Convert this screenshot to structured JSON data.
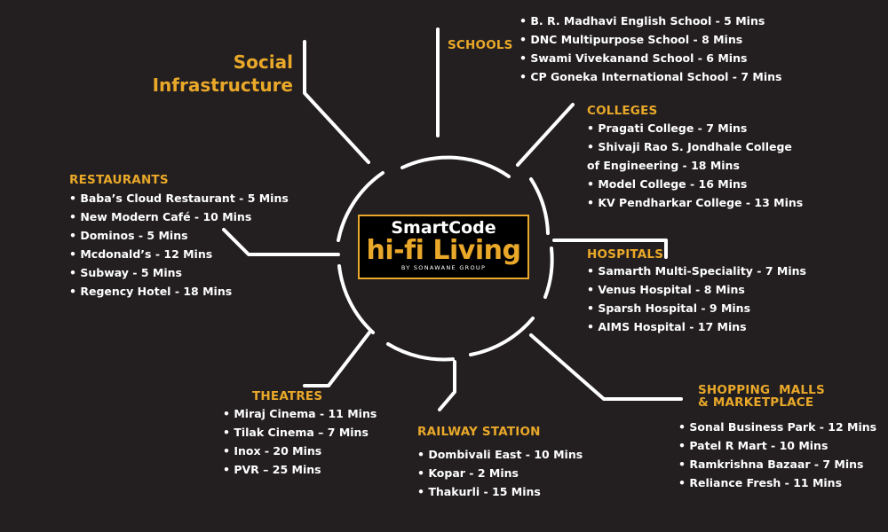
{
  "title": "Social Infrastructure",
  "logo": {
    "line1": "SmartCode",
    "line2": "hi-fi Living",
    "line3": "BY SONAWANE GROUP"
  },
  "schools": {
    "heading": "SCHOOLS",
    "items": [
      "• B. R. Madhavi English School - 5 Mins",
      "• DNC Multipurpose School - 8 Mins",
      "• Swami Vivekanand School - 6 Mins",
      "• CP Goneka International School - 7 Mins"
    ]
  },
  "colleges": {
    "heading": "COLLEGES",
    "items": [
      "• Pragati College - 7 Mins",
      "• Shivaji Rao S. Jondhale College",
      "of Engineering - 18 Mins",
      "• Model College - 16 Mins",
      "• KV Pendharkar College - 13 Mins"
    ]
  },
  "hospitals": {
    "heading": "HOSPITALS",
    "items": [
      "• Samarth Multi-Speciality - 7 Mins",
      "• Venus Hospital - 8 Mins",
      "• Sparsh Hospital - 9 Mins",
      "• AIMS Hospital - 17 Mins"
    ]
  },
  "restaurants": {
    "heading": "RESTAURANTS",
    "items": [
      "• Baba’s Cloud Restaurant - 5 Mins",
      "• New Modern Café - 10 Mins",
      "• Dominos - 5 Mins",
      "• Mcdonald’s - 12 Mins",
      "• Subway - 5 Mins",
      "• Regency Hotel - 18 Mins"
    ]
  },
  "theatres": {
    "heading": "THEATRES",
    "items": [
      "• Miraj Cinema - 11 Mins",
      "• Tilak Cinema – 7 Mins",
      "• Inox - 20 Mins",
      "• PVR – 25 Mins"
    ]
  },
  "railway": {
    "heading": "RAILWAY STATION",
    "items": [
      "• Dombivali East - 10 Mins",
      "• Kopar - 2 Mins",
      "• Thakurli - 15 Mins"
    ]
  },
  "malls": {
    "heading_line1": "SHOPPING  MALLS",
    "heading_line2": "& MARKETPLACE",
    "items": [
      "• Sonal Business Park - 12 Mins",
      "• Patel R Mart - 10 Mins",
      "• Ramkrishna Bazaar - 7 Mins",
      "• Reliance Fresh - 11 Mins"
    ]
  },
  "colors": {
    "background": "#231f20",
    "accent": "#e9a829",
    "line": "#ffffff"
  }
}
